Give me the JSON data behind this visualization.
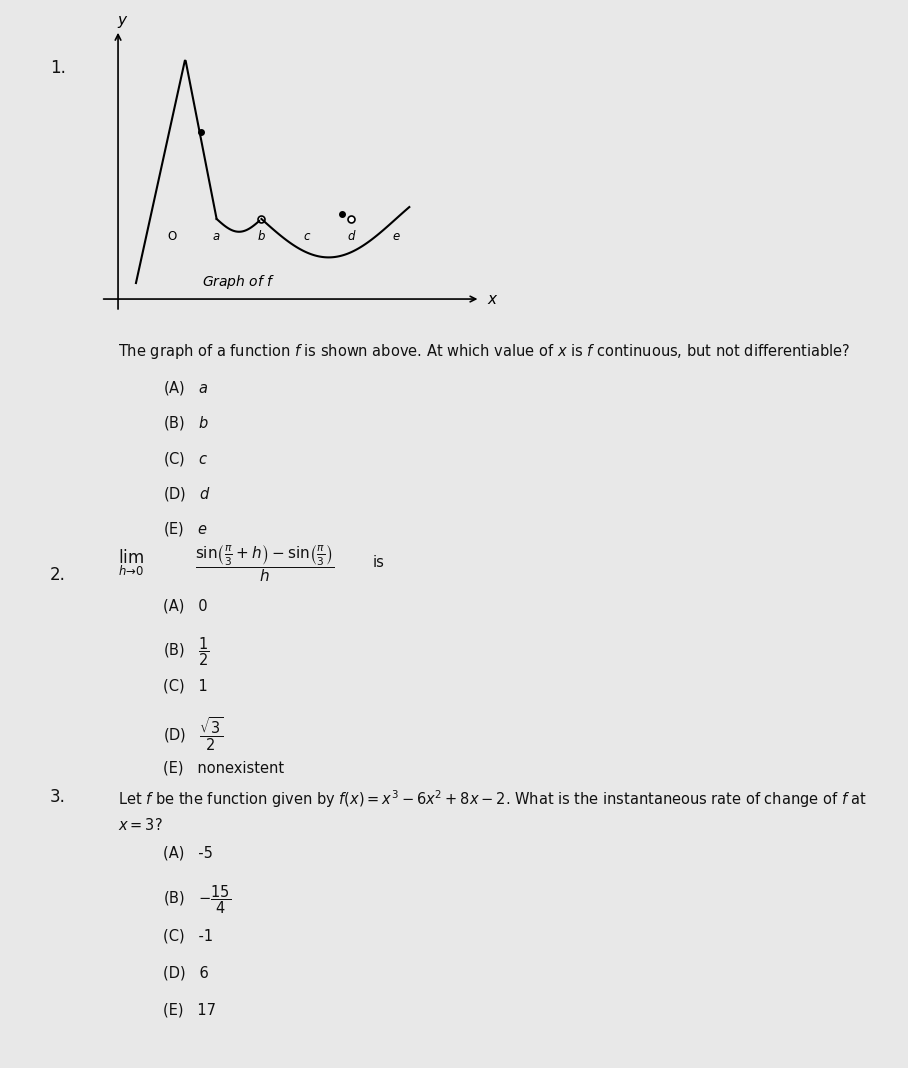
{
  "bg_color": "#e8e8e8",
  "page_bg": "#f0f0f0",
  "title_num_1": "1.",
  "title_num_2": "2.",
  "title_num_3": "3.",
  "q1_text": "The graph of a function ƒ is shown above. At which value of ς is ƒ continuous, but not differentiable?",
  "q1_choices": [
    "(A)  a",
    "(B)  b",
    "(C)  c",
    "(D)  d",
    "(E)  e"
  ],
  "q2_text": " is",
  "q2_choices": [
    "(A) 0",
    "(B) $\\\\frac{1}{2}$",
    "(C) 1",
    "(D) $\\\\frac{\\\\sqrt{3}}{2}$",
    "(E) nonexistent"
  ],
  "q3_text": "Let ƒ be the function given by $f(x) = x^3 - 6x^2 + 8x - 2$. What is the instantaneous rate of change of ƒ at\n$x = 3$?",
  "q3_choices": [
    "(A) -5",
    "(B) $-\\\\frac{15}{4}$",
    "(C) -1",
    "(D) 6",
    "(E) 17"
  ],
  "graph_label": "Graph of ƒ",
  "text_color": "#1a1a1a",
  "graph_line_color": "#1a1a1a",
  "axis_label_color": "#222222"
}
